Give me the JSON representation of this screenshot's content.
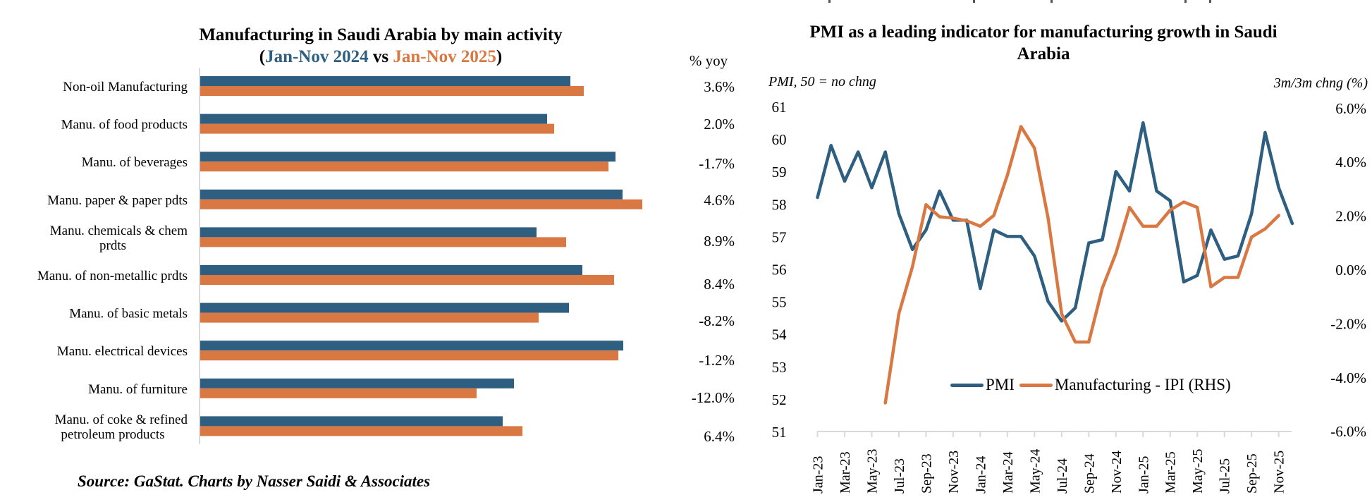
{
  "colors": {
    "series_2024": "#2e5f80",
    "series_2025": "#d97842",
    "axis": "#d9d9d9",
    "pmi": "#2e5f80",
    "ipi": "#d97842"
  },
  "left_chart": {
    "title_line1": "Manufacturing in Saudi Arabia by main activity",
    "title_open": "(",
    "title_2024": "Jan-Nov 2024",
    "title_vs": " vs ",
    "title_2025": "Jan-Nov 2025",
    "title_close": ")",
    "yoy_header": "% yoy"
  },
  "right_chart": {
    "title": "PMI as a leading indicator for manufacturing growth in Saudi Arabia",
    "lhs_unit": "PMI, 50 = no chng",
    "rhs_unit": "3m/3m chng (%)",
    "legend": [
      "PMI",
      "Manufacturing - IPI (RHS)"
    ]
  },
  "source": "Source: GaStat. Charts by Nasser Saidi & Associates",
  "chart_data": [
    {
      "type": "bar",
      "orientation": "horizontal",
      "title": "Manufacturing in Saudi Arabia by main activity (Jan-Nov 2024 vs Jan-Nov 2025)",
      "xlabel": "",
      "ylabel": "",
      "value_units": "relative index level (no axis scale shown)",
      "xlim": [
        0,
        650
      ],
      "grid": false,
      "categories": [
        "Non-oil Manufacturing",
        "Manu. of food products",
        "Manu. of beverages",
        "Manu. paper & paper pdts",
        "Manu. chemicals & chem prdts",
        "Manu. of non-metallic prdts",
        "Manu. of basic metals",
        "Manu. electrical devices",
        "Manu. of furniture",
        "Manu. of coke & refined petroleum products"
      ],
      "category_lines": [
        [
          "Non-oil Manufacturing"
        ],
        [
          "Manu. of food products"
        ],
        [
          "Manu. of beverages"
        ],
        [
          "Manu. paper & paper pdts"
        ],
        [
          "Manu. chemicals & chem",
          "prdts"
        ],
        [
          "Manu. of non-metallic prdts"
        ],
        [
          "Manu. of basic metals"
        ],
        [
          "Manu. electrical devices"
        ],
        [
          "Manu. of furniture"
        ],
        [
          "Manu. of coke & refined",
          "petroleum products"
        ]
      ],
      "series": [
        {
          "name": "Jan-Nov 2024",
          "values": [
            525,
            492,
            589,
            599,
            477,
            542,
            523,
            600,
            445,
            429
          ]
        },
        {
          "name": "Jan-Nov 2025",
          "values": [
            544,
            502,
            579,
            627,
            519,
            587,
            480,
            593,
            392,
            457
          ]
        }
      ],
      "annotations_header": "% yoy",
      "annotations": [
        "3.6%",
        "2.0%",
        "-1.7%",
        "4.6%",
        "8.9%",
        "8.4%",
        "-8.2%",
        "-1.2%",
        "-12.0%",
        "6.4%"
      ]
    },
    {
      "type": "line",
      "title": "PMI as a leading indicator for manufacturing growth in Saudi Arabia",
      "ylabel": "PMI, 50 = no chng",
      "y2label": "3m/3m chng (%)",
      "ylim": [
        51,
        61
      ],
      "y2lim": [
        -6.0,
        6.0
      ],
      "yticks": [
        51,
        52,
        53,
        54,
        55,
        56,
        57,
        58,
        59,
        60,
        61
      ],
      "y2ticks": [
        "-6.0%",
        "-4.0%",
        "-2.0%",
        "0.0%",
        "2.0%",
        "4.0%",
        "6.0%"
      ],
      "x": [
        "Jan-23",
        "Feb-23",
        "Mar-23",
        "Apr-23",
        "May-23",
        "Jun-23",
        "Jul-23",
        "Aug-23",
        "Sep-23",
        "Oct-23",
        "Nov-23",
        "Dec-23",
        "Jan-24",
        "Feb-24",
        "Mar-24",
        "Apr-24",
        "May-24",
        "Jun-24",
        "Jul-24",
        "Aug-24",
        "Sep-24",
        "Oct-24",
        "Nov-24",
        "Dec-24",
        "Jan-25",
        "Feb-25",
        "Mar-25",
        "Apr-25",
        "May-25",
        "Jun-25",
        "Jul-25",
        "Aug-25",
        "Sep-25",
        "Oct-25",
        "Nov-25",
        "Dec-25"
      ],
      "xticklabels": [
        "Jan-23",
        "Mar-23",
        "May-23",
        "Jul-23",
        "Sep-23",
        "Nov-23",
        "Jan-24",
        "Mar-24",
        "May-24",
        "Jul-24",
        "Sep-24",
        "Nov-24",
        "Jan-25",
        "Mar-25",
        "May-25",
        "Jul-25",
        "Sep-25",
        "Nov-25"
      ],
      "grid": false,
      "legend_position": "bottom-center (inside)",
      "series": [
        {
          "name": "PMI",
          "axis": "left",
          "values": [
            58.2,
            59.8,
            58.7,
            59.6,
            58.5,
            59.6,
            57.7,
            56.6,
            57.2,
            58.4,
            57.5,
            57.5,
            55.4,
            57.2,
            57.0,
            57.0,
            56.4,
            55.0,
            54.4,
            54.8,
            56.8,
            56.9,
            59.0,
            58.4,
            60.5,
            58.4,
            58.1,
            55.6,
            55.8,
            57.2,
            56.3,
            56.4,
            57.7,
            60.2,
            58.5,
            57.4
          ]
        },
        {
          "name": "Manufacturing - IPI (RHS)",
          "axis": "right",
          "values": [
            null,
            null,
            null,
            null,
            null,
            -4.96,
            -1.65,
            0.1,
            2.4,
            1.95,
            1.9,
            1.8,
            1.6,
            2.0,
            3.5,
            5.3,
            4.5,
            1.9,
            -1.65,
            -2.7,
            -2.7,
            -0.7,
            0.6,
            2.3,
            1.6,
            1.6,
            2.2,
            2.5,
            2.3,
            -0.65,
            -0.3,
            -0.3,
            1.2,
            1.5,
            2.0,
            null
          ]
        }
      ]
    }
  ]
}
